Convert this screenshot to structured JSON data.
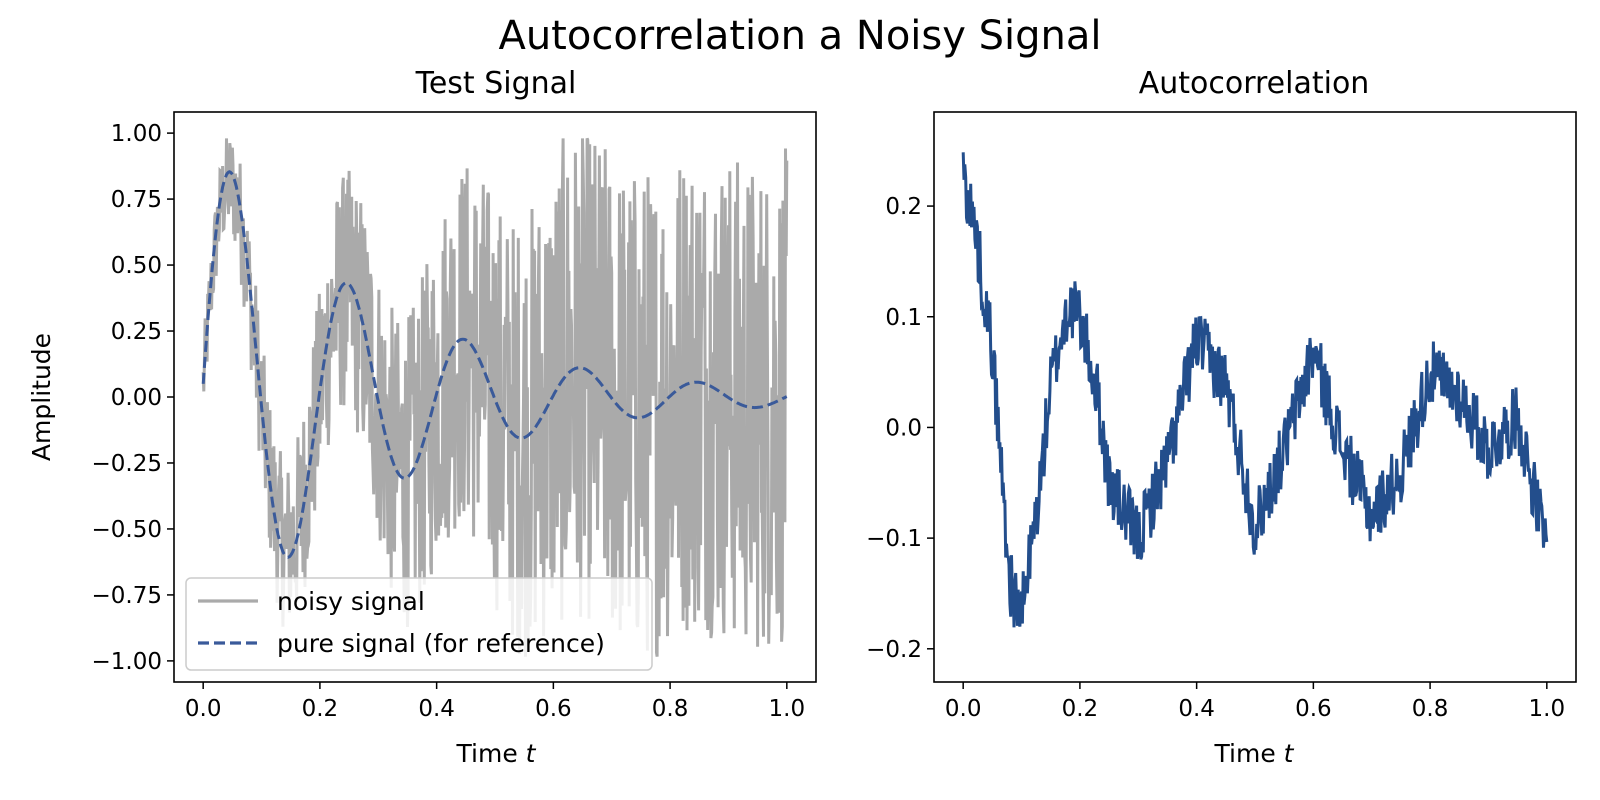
{
  "figure_title": "Autocorrelation a Noisy Signal",
  "chart_data": [
    {
      "type": "line",
      "title": "Test Signal",
      "xlabel": "Time",
      "xlabel_var": "t",
      "ylabel": "Amplitude",
      "xlim": [
        -0.05,
        1.05
      ],
      "ylim": [
        -1.08,
        1.08
      ],
      "x_ticks": [
        "0.0",
        "0.2",
        "0.4",
        "0.6",
        "0.8",
        "1.0"
      ],
      "y_ticks": [
        "1.00",
        "0.75",
        "0.50",
        "0.25",
        "0.00",
        "−0.25",
        "−0.50",
        "−0.75",
        "−1.00"
      ],
      "grid": false,
      "legend_position": "lower-left",
      "series": [
        {
          "name": "noisy signal",
          "style": "solid",
          "color": "#aaaaaa",
          "description_points": "pure signal plus uniform noise, clipped to [-1, 1]",
          "x_range": [
            0.0,
            1.0
          ],
          "noise_amplitude_range": [
            0.15,
            0.95
          ]
        },
        {
          "name": "pure signal (for reference)",
          "style": "dashed",
          "color": "#3a5a9a",
          "x": [
            0.0,
            0.05,
            0.1,
            0.15,
            0.2,
            0.25,
            0.3,
            0.35,
            0.4,
            0.45,
            0.5,
            0.55,
            0.6,
            0.65,
            0.7,
            0.75,
            0.8,
            0.85,
            0.9,
            0.95,
            1.0
          ],
          "y": [
            0.04,
            0.84,
            0.1,
            -0.59,
            -0.06,
            0.41,
            0.03,
            -0.29,
            0.01,
            0.21,
            0.0,
            -0.15,
            0.0,
            0.1,
            0.0,
            -0.07,
            0.0,
            0.05,
            0.0,
            -0.035,
            0.0
          ]
        }
      ]
    },
    {
      "type": "line",
      "title": "Autocorrelation",
      "xlabel": "Time",
      "xlabel_var": "t",
      "xlim": [
        -0.05,
        1.05
      ],
      "ylim": [
        -0.23,
        0.285
      ],
      "x_ticks": [
        "0.0",
        "0.2",
        "0.4",
        "0.6",
        "0.8",
        "1.0"
      ],
      "y_ticks": [
        "0.2",
        "0.1",
        "0.0",
        "−0.1",
        "−0.2"
      ],
      "grid": false,
      "series": [
        {
          "color": "#234e8c",
          "style": "solid",
          "x": [
            0.0,
            0.02,
            0.05,
            0.08,
            0.1,
            0.13,
            0.15,
            0.18,
            0.2,
            0.23,
            0.25,
            0.3,
            0.35,
            0.4,
            0.45,
            0.5,
            0.55,
            0.6,
            0.65,
            0.7,
            0.75,
            0.8,
            0.85,
            0.9,
            0.95,
            1.0
          ],
          "y": [
            0.23,
            0.18,
            0.07,
            -0.14,
            -0.17,
            -0.06,
            0.04,
            0.11,
            0.1,
            0.03,
            -0.05,
            -0.1,
            -0.03,
            0.08,
            0.04,
            -0.09,
            -0.02,
            0.07,
            -0.02,
            -0.08,
            -0.04,
            0.05,
            0.03,
            -0.02,
            0.01,
            -0.11
          ]
        }
      ]
    }
  ]
}
